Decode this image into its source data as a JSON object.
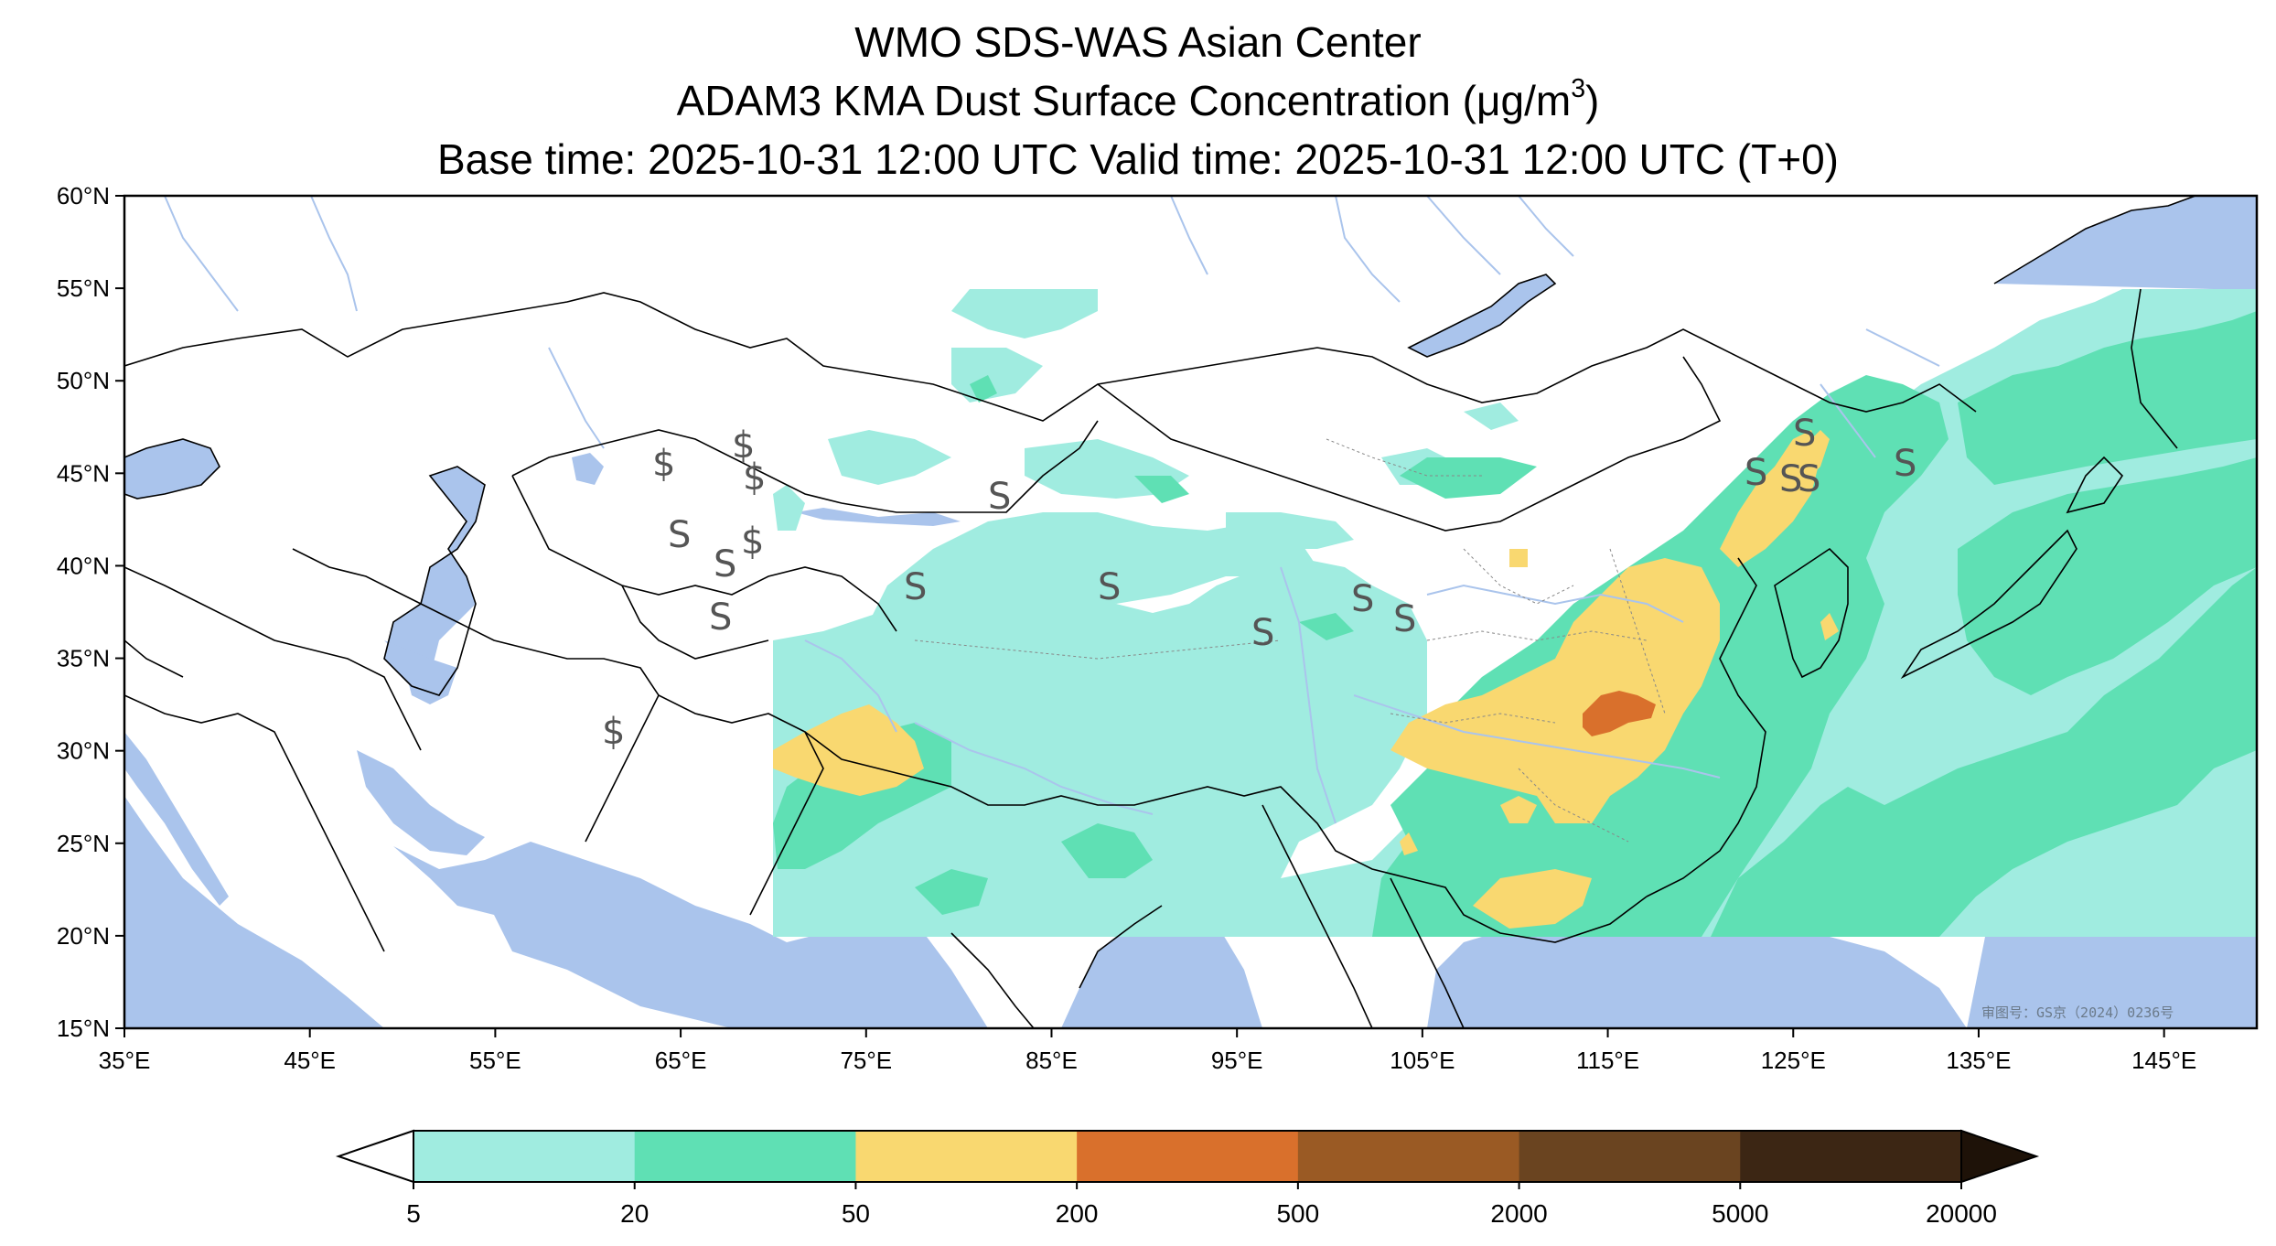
{
  "title": {
    "line1": "WMO SDS-WAS Asian Center",
    "line2_prefix": "ADAM3 KMA Dust Surface Concentration (",
    "line2_mu": "μ",
    "line2_unit": "g/m",
    "line2_exp": "3",
    "line2_suffix": ")",
    "line3": "Base time: 2025-10-31 12:00 UTC Valid time: 2025-10-31 12:00 UTC (T+0)"
  },
  "map": {
    "extent": {
      "lon": [
        35,
        150
      ],
      "lat": [
        15,
        60
      ]
    },
    "lat_ticks": [
      {
        "value": 60,
        "label": "60°N"
      },
      {
        "value": 55,
        "label": "55°N"
      },
      {
        "value": 50,
        "label": "50°N"
      },
      {
        "value": 45,
        "label": "45°N"
      },
      {
        "value": 40,
        "label": "40°N"
      },
      {
        "value": 35,
        "label": "35°N"
      },
      {
        "value": 30,
        "label": "30°N"
      },
      {
        "value": 25,
        "label": "25°N"
      },
      {
        "value": 20,
        "label": "20°N"
      },
      {
        "value": 15,
        "label": "15°N"
      }
    ],
    "lon_ticks": [
      {
        "value": 35,
        "label": "35°E"
      },
      {
        "value": 45,
        "label": "45°E"
      },
      {
        "value": 55,
        "label": "55°E"
      },
      {
        "value": 65,
        "label": "65°E"
      },
      {
        "value": 75,
        "label": "75°E"
      },
      {
        "value": 85,
        "label": "85°E"
      },
      {
        "value": 95,
        "label": "95°E"
      },
      {
        "value": 105,
        "label": "105°E"
      },
      {
        "value": 115,
        "label": "115°E"
      },
      {
        "value": 125,
        "label": "125°E"
      },
      {
        "value": 135,
        "label": "135°E"
      },
      {
        "value": 145,
        "label": "145°E"
      }
    ],
    "model_domain": {
      "lon": [
        70,
        150
      ],
      "lat": [
        20,
        55
      ]
    },
    "approval_stamp": "审图号：GS京（2024）0236号",
    "water_color": "#aac4ec",
    "land_color": "#ffffff"
  },
  "colorbar": {
    "levels": [
      "5",
      "20",
      "50",
      "200",
      "500",
      "2000",
      "5000",
      "20000"
    ],
    "colors": [
      "#a0ece0",
      "#5fe0b4",
      "#f9d870",
      "#d9702c",
      "#9a5a24",
      "#6a4420",
      "#3c2614"
    ],
    "extend": "both",
    "under_color": "#ffffff",
    "over_color": "#1e1208"
  },
  "dust_field": {
    "description_levels": {
      "low": "5-20",
      "mid": "20-50",
      "high": "50-200",
      "very_high": "200-500"
    }
  },
  "weather_symbols": [
    "S",
    "$"
  ]
}
